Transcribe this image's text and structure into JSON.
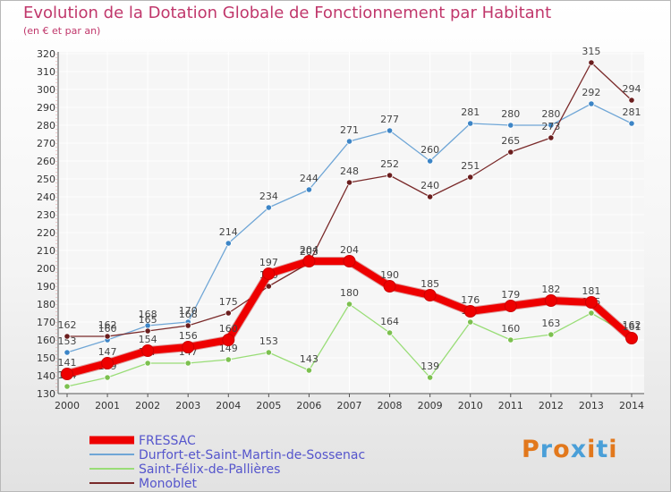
{
  "title": "Evolution de la Dotation Globale de Fonctionnement par Habitant",
  "subtitle": "(en € et par an)",
  "logo": {
    "letters": [
      "P",
      "r",
      "o",
      "x",
      "i",
      "t",
      "i"
    ],
    "colors": [
      "#e2781c",
      "#4a9fd8",
      "#e2781c",
      "#4a9fd8",
      "#e2781c",
      "#4a9fd8",
      "#e2781c"
    ]
  },
  "chart_data": {
    "type": "line",
    "categories": [
      "2000",
      "2001",
      "2002",
      "2003",
      "2004",
      "2005",
      "2006",
      "2007",
      "2008",
      "2009",
      "2010",
      "2011",
      "2012",
      "2013",
      "2014"
    ],
    "ylim": [
      130,
      320
    ],
    "yticks": [
      130,
      140,
      150,
      160,
      170,
      180,
      190,
      200,
      210,
      220,
      230,
      240,
      250,
      260,
      270,
      280,
      290,
      300,
      310,
      320
    ],
    "grid": true,
    "legend_position": "bottom-left",
    "series": [
      {
        "name": "Durfort-et-Saint-Martin-de-Sossenac",
        "color": "#6fa6d6",
        "point_color": "#3d85c6",
        "values": [
          153,
          160,
          168,
          170,
          214,
          234,
          244,
          271,
          277,
          260,
          281,
          280,
          280,
          292,
          281
        ]
      },
      {
        "name": "Saint-Félix-de-Pallières",
        "color": "#99dd77",
        "point_color": "#7cc04f",
        "values": [
          134,
          139,
          147,
          147,
          149,
          153,
          143,
          180,
          164,
          139,
          170,
          160,
          163,
          175,
          162
        ]
      },
      {
        "name": "Monoblet",
        "color": "#7a2a2a",
        "point_color": "#6b1e1e",
        "values": [
          162,
          162,
          165,
          168,
          175,
          190,
          203,
          248,
          252,
          240,
          251,
          265,
          273,
          315,
          294
        ]
      },
      {
        "name": "FRESSAC",
        "color": "#ee0000",
        "point_color": "#ee0000",
        "values": [
          141,
          147,
          154,
          156,
          160,
          197,
          204,
          204,
          190,
          185,
          176,
          179,
          182,
          181,
          161
        ]
      }
    ],
    "point_labels": [
      [
        "153",
        "160",
        "168",
        "170",
        "214",
        "234",
        "244",
        "271",
        "277",
        "260",
        "281",
        "280",
        "280",
        "292",
        "281"
      ],
      [
        "134",
        "139",
        "147",
        "147",
        "149",
        "153",
        "143",
        "180",
        "164",
        "139",
        "170",
        "160",
        "163",
        "175",
        "162"
      ],
      [
        "162",
        "162",
        "165",
        "168",
        "175",
        "190",
        "203",
        "248",
        "252",
        "240",
        "251",
        "265",
        "273",
        "315",
        "294"
      ],
      [
        "141",
        "147",
        "154",
        "156",
        "160",
        "197",
        "204",
        "204",
        "190",
        "185",
        "176",
        "179",
        "182",
        "181",
        "161"
      ]
    ],
    "legend": [
      {
        "name": "FRESSAC",
        "color": "#ee0000",
        "weight": 9
      },
      {
        "name": "Durfort-et-Saint-Martin-de-Sossenac",
        "color": "#6fa6d6",
        "weight": 2
      },
      {
        "name": "Saint-Félix-de-Pallières",
        "color": "#99dd77",
        "weight": 2
      },
      {
        "name": "Monoblet",
        "color": "#7a2a2a",
        "weight": 2
      }
    ]
  }
}
